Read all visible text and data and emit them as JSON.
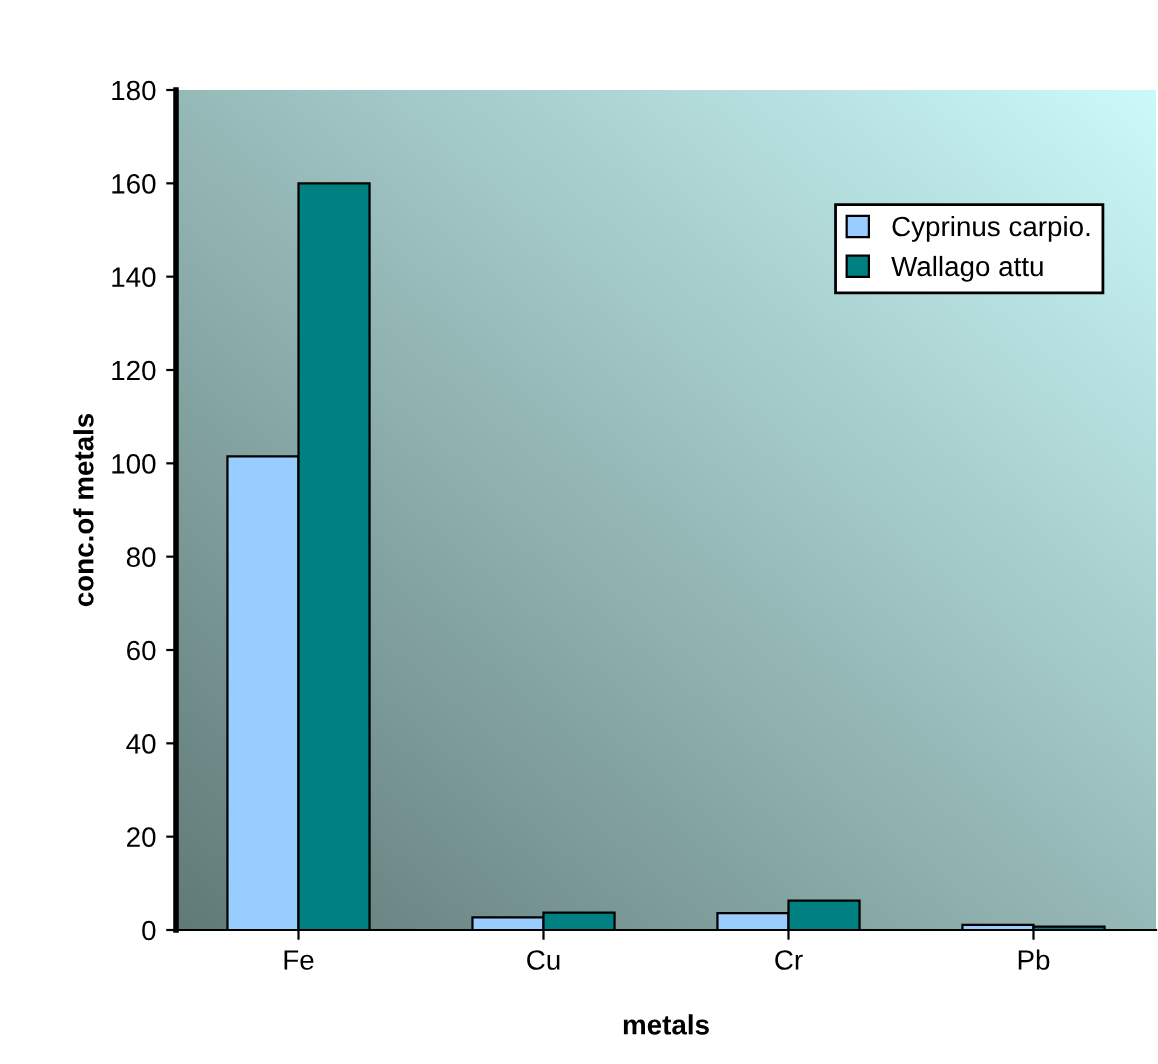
{
  "chart_data": {
    "type": "bar",
    "xlabel": "metals",
    "ylabel": "conc.of metals",
    "categories": [
      "Fe",
      "Cu",
      "Cr",
      "Pb"
    ],
    "series": [
      {
        "name": "Cyprinus carpio.",
        "color": "#99ccff",
        "values": [
          101.5,
          2.7,
          3.6,
          1.1
        ]
      },
      {
        "name": "Wallago attu",
        "color": "#008080",
        "values": [
          160,
          3.7,
          6.3,
          0.7
        ]
      }
    ],
    "ylim": [
      0,
      180
    ],
    "yticks": [
      0,
      20,
      40,
      60,
      80,
      100,
      120,
      140,
      160,
      180
    ],
    "legend": "top right",
    "grid": false
  }
}
